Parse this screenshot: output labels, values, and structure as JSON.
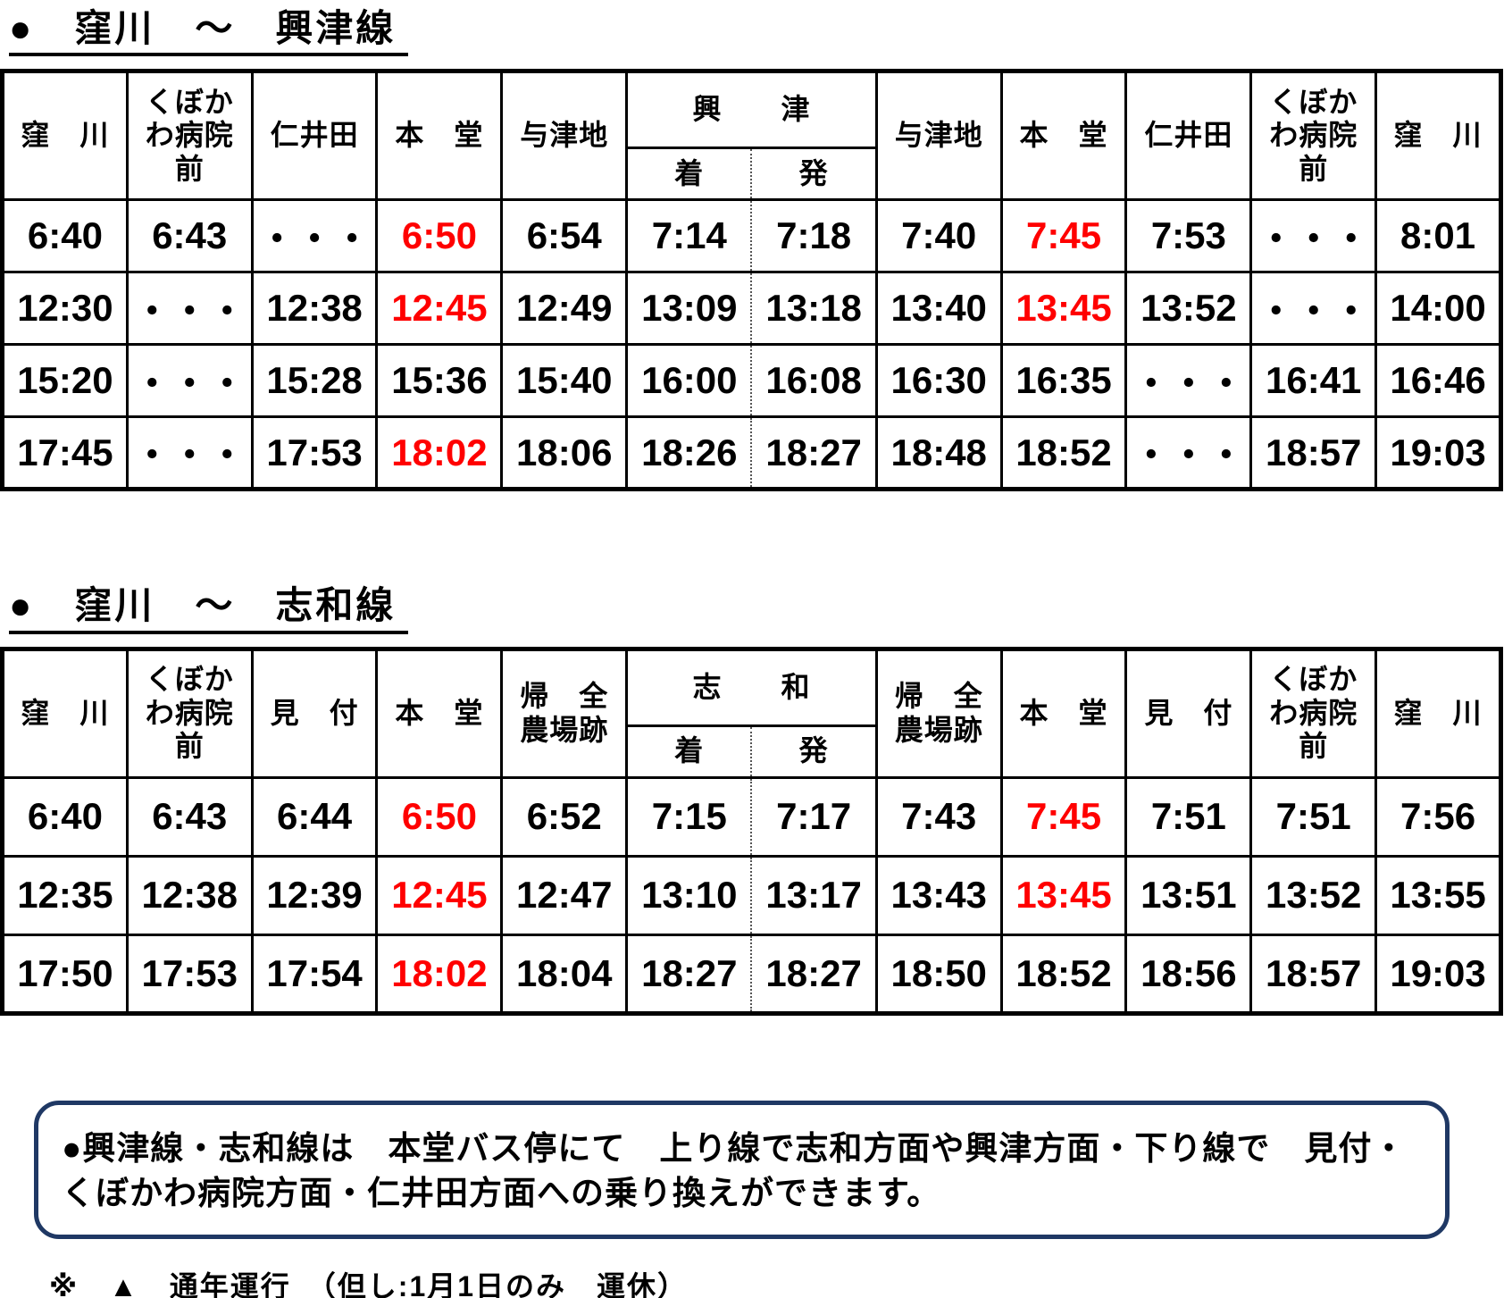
{
  "page": {
    "background": "#ffffff",
    "text_color": "#000000",
    "highlight_red": "#ff0000",
    "note_border_color": "#1f3864"
  },
  "tables": [
    {
      "title": "●　窪川　～　興津線",
      "stops_out": [
        "窪　川",
        "くぼか\nわ病院\n前",
        "仁井田",
        "本　堂",
        "与津地"
      ],
      "terminal": {
        "name": "興　　津",
        "sub": [
          "着",
          "発"
        ]
      },
      "stops_back": [
        "与津地",
        "本　堂",
        "仁井田",
        "くぼか\nわ病院\n前",
        "窪　川"
      ],
      "rows": [
        {
          "times": [
            "6:40",
            "6:43",
            "・・・",
            "6:50",
            "6:54",
            "7:14",
            "7:18",
            "7:40",
            "7:45",
            "7:53",
            "・・・",
            "8:01"
          ],
          "red": [
            3,
            8
          ]
        },
        {
          "times": [
            "12:30",
            "・・・",
            "12:38",
            "12:45",
            "12:49",
            "13:09",
            "13:18",
            "13:40",
            "13:45",
            "13:52",
            "・・・",
            "14:00"
          ],
          "red": [
            3,
            8
          ]
        },
        {
          "times": [
            "15:20",
            "・・・",
            "15:28",
            "15:36",
            "15:40",
            "16:00",
            "16:08",
            "16:30",
            "16:35",
            "・・・",
            "16:41",
            "16:46"
          ],
          "red": []
        },
        {
          "times": [
            "17:45",
            "・・・",
            "17:53",
            "18:02",
            "18:06",
            "18:26",
            "18:27",
            "18:48",
            "18:52",
            "・・・",
            "18:57",
            "19:03"
          ],
          "red": [
            3
          ]
        }
      ]
    },
    {
      "title": "●　窪川　～　志和線",
      "stops_out": [
        "窪　川",
        "くぼか\nわ病院\n前",
        "見　付",
        "本　堂",
        "帰　全\n農場跡"
      ],
      "terminal": {
        "name": "志　　和",
        "sub": [
          "着",
          "発"
        ]
      },
      "stops_back": [
        "帰　全\n農場跡",
        "本　堂",
        "見　付",
        "くぼか\nわ病院\n前",
        "窪　川"
      ],
      "rows": [
        {
          "times": [
            "6:40",
            "6:43",
            "6:44",
            "6:50",
            "6:52",
            "7:15",
            "7:17",
            "7:43",
            "7:45",
            "7:51",
            "7:51",
            "7:56"
          ],
          "red": [
            3,
            8
          ]
        },
        {
          "times": [
            "12:35",
            "12:38",
            "12:39",
            "12:45",
            "12:47",
            "13:10",
            "13:17",
            "13:43",
            "13:45",
            "13:51",
            "13:52",
            "13:55"
          ],
          "red": [
            3,
            8
          ]
        },
        {
          "times": [
            "17:50",
            "17:53",
            "17:54",
            "18:02",
            "18:04",
            "18:27",
            "18:27",
            "18:50",
            "18:52",
            "18:56",
            "18:57",
            "19:03"
          ],
          "red": [
            3
          ]
        }
      ]
    }
  ],
  "note": {
    "text": "●興津線・志和線は　本堂バス停にて　上り線で志和方面や興津方面・下り線で　見付・くぼかわ病院方面・仁井田方面への乗り換えができます。"
  },
  "footnote": "※　▲　通年運行　（但し:1月1日のみ　運休）"
}
